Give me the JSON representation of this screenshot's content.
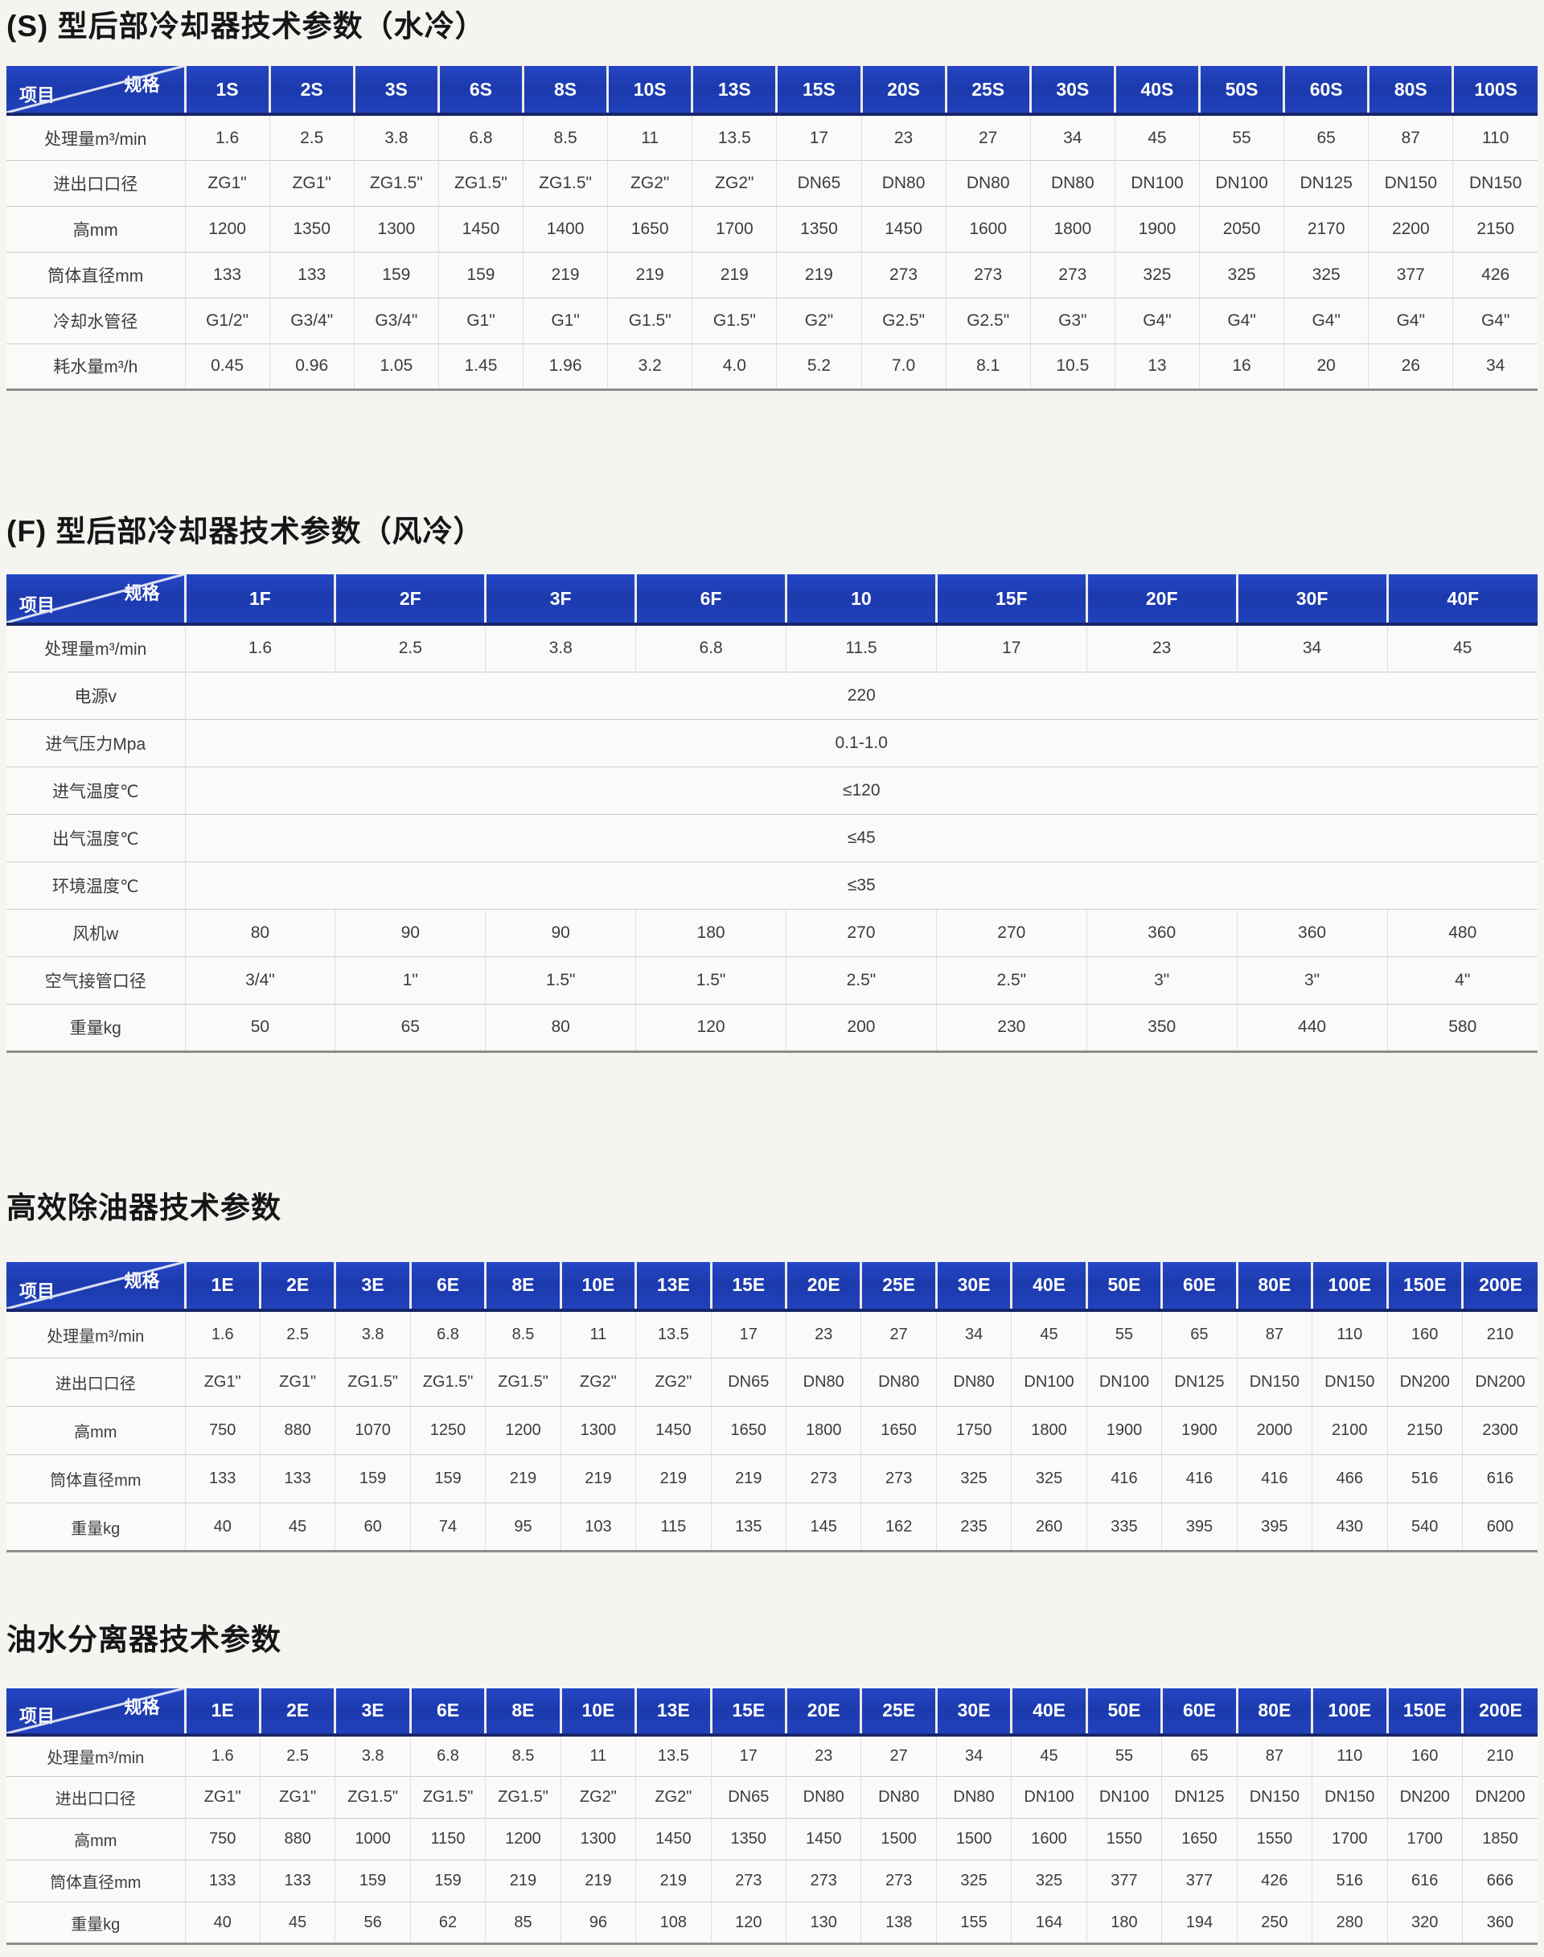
{
  "colors": {
    "header_bg": "#1e3eb5",
    "header_text": "#ffffff",
    "page_bg": "#f5f4f1",
    "title_text": "#161616"
  },
  "corner": {
    "top_right": "规格",
    "bottom_left": "项目"
  },
  "tables": [
    {
      "id": "s-type-water-cooled-aftercooler",
      "title": "(S) 型后部冷却器技术参数（水冷）",
      "columns": [
        "1S",
        "2S",
        "3S",
        "6S",
        "8S",
        "10S",
        "13S",
        "15S",
        "20S",
        "25S",
        "30S",
        "40S",
        "50S",
        "60S",
        "80S",
        "100S"
      ],
      "rows": [
        {
          "label": "处理量m³/min",
          "values": [
            "1.6",
            "2.5",
            "3.8",
            "6.8",
            "8.5",
            "11",
            "13.5",
            "17",
            "23",
            "27",
            "34",
            "45",
            "55",
            "65",
            "87",
            "110"
          ]
        },
        {
          "label": "进出口口径",
          "values": [
            "ZG1\"",
            "ZG1\"",
            "ZG1.5\"",
            "ZG1.5\"",
            "ZG1.5\"",
            "ZG2\"",
            "ZG2\"",
            "DN65",
            "DN80",
            "DN80",
            "DN80",
            "DN100",
            "DN100",
            "DN125",
            "DN150",
            "DN150"
          ]
        },
        {
          "label": "高mm",
          "values": [
            "1200",
            "1350",
            "1300",
            "1450",
            "1400",
            "1650",
            "1700",
            "1350",
            "1450",
            "1600",
            "1800",
            "1900",
            "2050",
            "2170",
            "2200",
            "2150"
          ]
        },
        {
          "label": "筒体直径mm",
          "values": [
            "133",
            "133",
            "159",
            "159",
            "219",
            "219",
            "219",
            "219",
            "273",
            "273",
            "273",
            "325",
            "325",
            "325",
            "377",
            "426"
          ]
        },
        {
          "label": "冷却水管径",
          "values": [
            "G1/2\"",
            "G3/4\"",
            "G3/4\"",
            "G1\"",
            "G1\"",
            "G1.5\"",
            "G1.5\"",
            "G2\"",
            "G2.5\"",
            "G2.5\"",
            "G3\"",
            "G4\"",
            "G4\"",
            "G4\"",
            "G4\"",
            "G4\""
          ]
        },
        {
          "label": "耗水量m³/h",
          "values": [
            "0.45",
            "0.96",
            "1.05",
            "1.45",
            "1.96",
            "3.2",
            "4.0",
            "5.2",
            "7.0",
            "8.1",
            "10.5",
            "13",
            "16",
            "20",
            "26",
            "34"
          ]
        }
      ]
    },
    {
      "id": "f-type-air-cooled-aftercooler",
      "title": "(F) 型后部冷却器技术参数（风冷）",
      "columns": [
        "1F",
        "2F",
        "3F",
        "6F",
        "10",
        "15F",
        "20F",
        "30F",
        "40F"
      ],
      "rows": [
        {
          "label": "处理量m³/min",
          "values": [
            "1.6",
            "2.5",
            "3.8",
            "6.8",
            "11.5",
            "17",
            "23",
            "34",
            "45"
          ]
        },
        {
          "label": "电源v",
          "merged": "220"
        },
        {
          "label": "进气压力Mpa",
          "merged": "0.1-1.0"
        },
        {
          "label": "进气温度℃",
          "merged": "≤120"
        },
        {
          "label": "出气温度℃",
          "merged": "≤45"
        },
        {
          "label": "环境温度℃",
          "merged": "≤35"
        },
        {
          "label": "风机w",
          "values": [
            "80",
            "90",
            "90",
            "180",
            "270",
            "270",
            "360",
            "360",
            "480"
          ]
        },
        {
          "label": "空气接管口径",
          "values": [
            "3/4\"",
            "1\"",
            "1.5\"",
            "1.5\"",
            "2.5\"",
            "2.5\"",
            "3\"",
            "3\"",
            "4\""
          ]
        },
        {
          "label": "重量kg",
          "values": [
            "50",
            "65",
            "80",
            "120",
            "200",
            "230",
            "350",
            "440",
            "580"
          ]
        }
      ]
    },
    {
      "id": "high-efficiency-oil-remover",
      "title": "高效除油器技术参数",
      "columns": [
        "1E",
        "2E",
        "3E",
        "6E",
        "8E",
        "10E",
        "13E",
        "15E",
        "20E",
        "25E",
        "30E",
        "40E",
        "50E",
        "60E",
        "80E",
        "100E",
        "150E",
        "200E"
      ],
      "rows": [
        {
          "label": "处理量m³/min",
          "values": [
            "1.6",
            "2.5",
            "3.8",
            "6.8",
            "8.5",
            "11",
            "13.5",
            "17",
            "23",
            "27",
            "34",
            "45",
            "55",
            "65",
            "87",
            "110",
            "160",
            "210"
          ]
        },
        {
          "label": "进出口口径",
          "values": [
            "ZG1\"",
            "ZG1\"",
            "ZG1.5\"",
            "ZG1.5\"",
            "ZG1.5\"",
            "ZG2\"",
            "ZG2\"",
            "DN65",
            "DN80",
            "DN80",
            "DN80",
            "DN100",
            "DN100",
            "DN125",
            "DN150",
            "DN150",
            "DN200",
            "DN200"
          ]
        },
        {
          "label": "高mm",
          "values": [
            "750",
            "880",
            "1070",
            "1250",
            "1200",
            "1300",
            "1450",
            "1650",
            "1800",
            "1650",
            "1750",
            "1800",
            "1900",
            "1900",
            "2000",
            "2100",
            "2150",
            "2300"
          ]
        },
        {
          "label": "筒体直径mm",
          "values": [
            "133",
            "133",
            "159",
            "159",
            "219",
            "219",
            "219",
            "219",
            "273",
            "273",
            "325",
            "325",
            "416",
            "416",
            "416",
            "466",
            "516",
            "616"
          ]
        },
        {
          "label": "重量kg",
          "values": [
            "40",
            "45",
            "60",
            "74",
            "95",
            "103",
            "115",
            "135",
            "145",
            "162",
            "235",
            "260",
            "335",
            "395",
            "395",
            "430",
            "540",
            "600"
          ]
        }
      ]
    },
    {
      "id": "oil-water-separator",
      "title": "油水分离器技术参数",
      "columns": [
        "1E",
        "2E",
        "3E",
        "6E",
        "8E",
        "10E",
        "13E",
        "15E",
        "20E",
        "25E",
        "30E",
        "40E",
        "50E",
        "60E",
        "80E",
        "100E",
        "150E",
        "200E"
      ],
      "rows": [
        {
          "label": "处理量m³/min",
          "values": [
            "1.6",
            "2.5",
            "3.8",
            "6.8",
            "8.5",
            "11",
            "13.5",
            "17",
            "23",
            "27",
            "34",
            "45",
            "55",
            "65",
            "87",
            "110",
            "160",
            "210"
          ]
        },
        {
          "label": "进出口口径",
          "values": [
            "ZG1\"",
            "ZG1\"",
            "ZG1.5\"",
            "ZG1.5\"",
            "ZG1.5\"",
            "ZG2\"",
            "ZG2\"",
            "DN65",
            "DN80",
            "DN80",
            "DN80",
            "DN100",
            "DN100",
            "DN125",
            "DN150",
            "DN150",
            "DN200",
            "DN200"
          ]
        },
        {
          "label": "高mm",
          "values": [
            "750",
            "880",
            "1000",
            "1150",
            "1200",
            "1300",
            "1450",
            "1350",
            "1450",
            "1500",
            "1500",
            "1600",
            "1550",
            "1650",
            "1550",
            "1700",
            "1700",
            "1850"
          ]
        },
        {
          "label": "筒体直径mm",
          "values": [
            "133",
            "133",
            "159",
            "159",
            "219",
            "219",
            "219",
            "273",
            "273",
            "273",
            "325",
            "325",
            "377",
            "377",
            "426",
            "516",
            "616",
            "666"
          ]
        },
        {
          "label": "重量kg",
          "values": [
            "40",
            "45",
            "56",
            "62",
            "85",
            "96",
            "108",
            "120",
            "130",
            "138",
            "155",
            "164",
            "180",
            "194",
            "250",
            "280",
            "320",
            "360"
          ]
        }
      ]
    }
  ]
}
